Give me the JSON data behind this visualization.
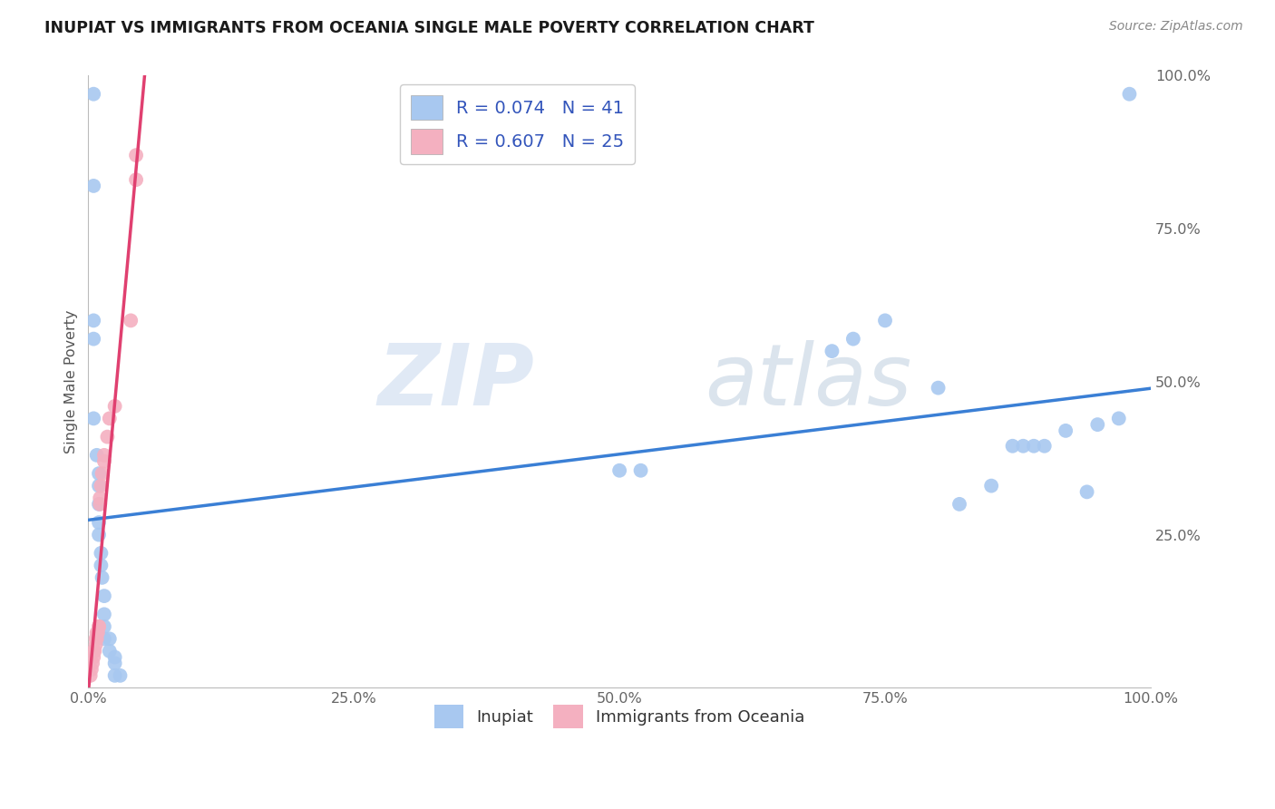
{
  "title": "INUPIAT VS IMMIGRANTS FROM OCEANIA SINGLE MALE POVERTY CORRELATION CHART",
  "source": "Source: ZipAtlas.com",
  "ylabel": "Single Male Poverty",
  "xlim": [
    0,
    1
  ],
  "ylim": [
    0,
    1
  ],
  "xtick_labels": [
    "0.0%",
    "25.0%",
    "50.0%",
    "75.0%",
    "100.0%"
  ],
  "xtick_vals": [
    0.0,
    0.25,
    0.5,
    0.75,
    1.0
  ],
  "ytick_labels": [
    "25.0%",
    "50.0%",
    "75.0%",
    "100.0%"
  ],
  "ytick_vals": [
    0.25,
    0.5,
    0.75,
    1.0
  ],
  "inupiat_color": "#a8c8f0",
  "oceania_color": "#f4b0c0",
  "inupiat_line_color": "#3a7fd5",
  "oceania_line_color": "#e04070",
  "watermark_zip": "ZIP",
  "watermark_atlas": "atlas",
  "background_color": "#ffffff",
  "inupiat_points": [
    [
      0.005,
      0.97
    ],
    [
      0.005,
      0.82
    ],
    [
      0.005,
      0.6
    ],
    [
      0.005,
      0.57
    ],
    [
      0.005,
      0.44
    ],
    [
      0.008,
      0.38
    ],
    [
      0.01,
      0.35
    ],
    [
      0.01,
      0.33
    ],
    [
      0.01,
      0.3
    ],
    [
      0.01,
      0.27
    ],
    [
      0.01,
      0.25
    ],
    [
      0.012,
      0.22
    ],
    [
      0.012,
      0.2
    ],
    [
      0.013,
      0.18
    ],
    [
      0.015,
      0.15
    ],
    [
      0.015,
      0.12
    ],
    [
      0.015,
      0.1
    ],
    [
      0.015,
      0.08
    ],
    [
      0.02,
      0.08
    ],
    [
      0.02,
      0.06
    ],
    [
      0.025,
      0.05
    ],
    [
      0.025,
      0.04
    ],
    [
      0.025,
      0.02
    ],
    [
      0.03,
      0.02
    ],
    [
      0.5,
      0.355
    ],
    [
      0.52,
      0.355
    ],
    [
      0.7,
      0.55
    ],
    [
      0.72,
      0.57
    ],
    [
      0.75,
      0.6
    ],
    [
      0.8,
      0.49
    ],
    [
      0.82,
      0.3
    ],
    [
      0.85,
      0.33
    ],
    [
      0.87,
      0.395
    ],
    [
      0.88,
      0.395
    ],
    [
      0.89,
      0.395
    ],
    [
      0.9,
      0.395
    ],
    [
      0.92,
      0.42
    ],
    [
      0.94,
      0.32
    ],
    [
      0.95,
      0.43
    ],
    [
      0.97,
      0.44
    ],
    [
      0.98,
      0.97
    ]
  ],
  "oceania_points": [
    [
      0.002,
      0.02
    ],
    [
      0.003,
      0.03
    ],
    [
      0.004,
      0.04
    ],
    [
      0.005,
      0.05
    ],
    [
      0.005,
      0.06
    ],
    [
      0.006,
      0.06
    ],
    [
      0.007,
      0.07
    ],
    [
      0.007,
      0.08
    ],
    [
      0.008,
      0.08
    ],
    [
      0.008,
      0.09
    ],
    [
      0.009,
      0.09
    ],
    [
      0.01,
      0.1
    ],
    [
      0.01,
      0.1
    ],
    [
      0.011,
      0.3
    ],
    [
      0.011,
      0.31
    ],
    [
      0.012,
      0.33
    ],
    [
      0.013,
      0.35
    ],
    [
      0.015,
      0.37
    ],
    [
      0.015,
      0.38
    ],
    [
      0.018,
      0.41
    ],
    [
      0.02,
      0.44
    ],
    [
      0.025,
      0.46
    ],
    [
      0.04,
      0.6
    ],
    [
      0.045,
      0.83
    ],
    [
      0.045,
      0.87
    ]
  ],
  "inupiat_R": 0.074,
  "inupiat_N": 41,
  "oceania_R": 0.607,
  "oceania_N": 25
}
